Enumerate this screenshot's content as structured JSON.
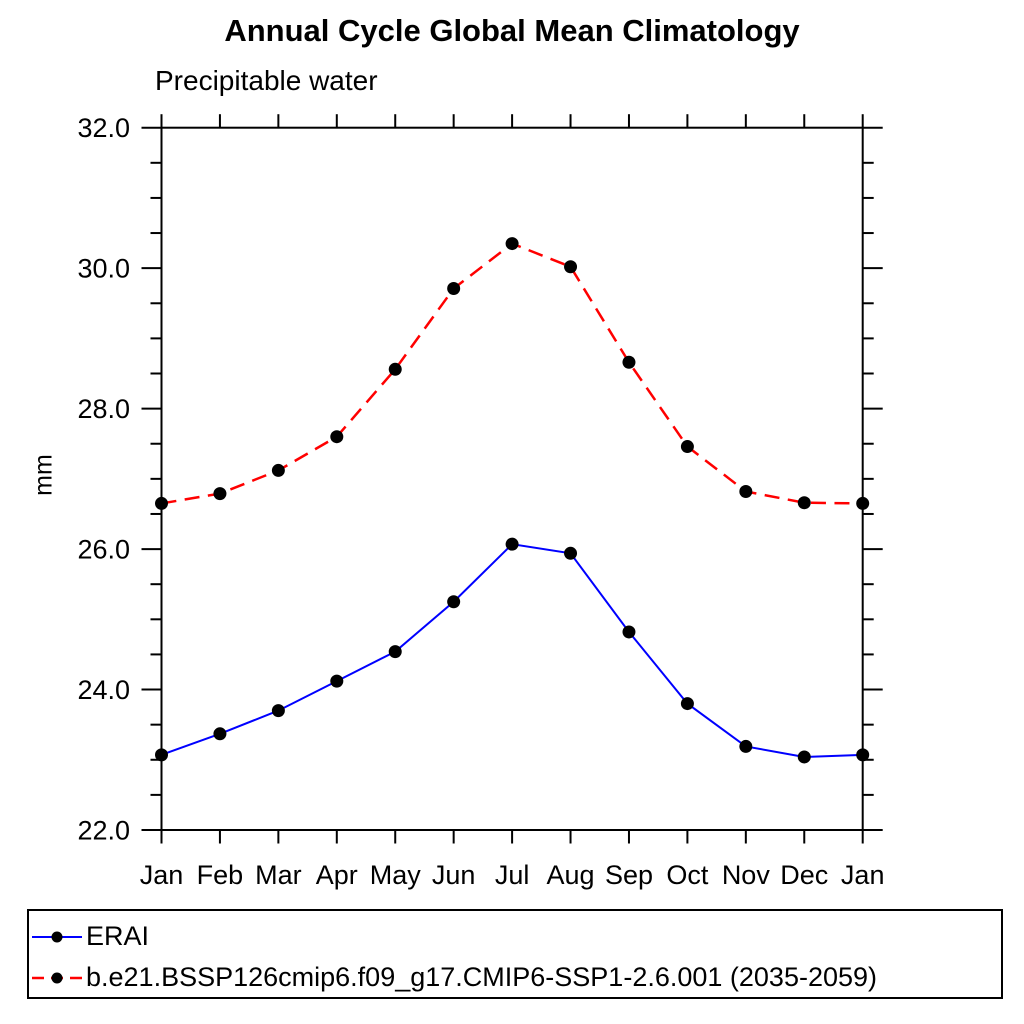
{
  "title": "Annual Cycle Global Mean Climatology",
  "subtitle": "Precipitable water",
  "ylabel": "mm",
  "chart_data": {
    "type": "line",
    "title": "Annual Cycle Global Mean Climatology",
    "subtitle": "Precipitable water",
    "xlabel": "",
    "ylabel": "mm",
    "x_categories": [
      "Jan",
      "Feb",
      "Mar",
      "Apr",
      "May",
      "Jun",
      "Jul",
      "Aug",
      "Sep",
      "Oct",
      "Nov",
      "Dec",
      "Jan"
    ],
    "ylim": [
      22.0,
      32.0
    ],
    "yticks": [
      {
        "value": 22.0,
        "label": "22.0"
      },
      {
        "value": 24.0,
        "label": "24.0"
      },
      {
        "value": 26.0,
        "label": "26.0"
      },
      {
        "value": 28.0,
        "label": "28.0"
      },
      {
        "value": 30.0,
        "label": "30.0"
      },
      {
        "value": 32.0,
        "label": "32.0"
      }
    ],
    "ytick_minor_step": 0.5,
    "grid": false,
    "legend_position": "bottom-left boxed",
    "series": [
      {
        "name": "ERAI",
        "color": "#0000ff",
        "line_style": "solid",
        "marker": "filled-circle",
        "marker_color": "#000000",
        "values": [
          23.07,
          23.37,
          23.7,
          24.12,
          24.54,
          25.25,
          26.07,
          25.94,
          24.82,
          23.8,
          23.19,
          23.04,
          23.07
        ]
      },
      {
        "name": "b.e21.BSSP126cmip6.f09_g17.CMIP6-SSP1-2.6.001 (2035-2059)",
        "color": "#ff0000",
        "line_style": "dashed",
        "marker": "filled-circle",
        "marker_color": "#000000",
        "values": [
          26.65,
          26.79,
          27.12,
          27.6,
          28.56,
          29.71,
          30.35,
          30.02,
          28.66,
          27.46,
          26.82,
          26.66,
          26.65
        ]
      }
    ]
  }
}
